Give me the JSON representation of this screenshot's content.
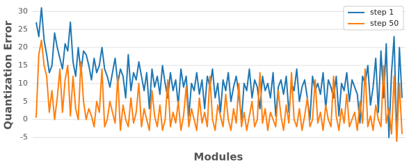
{
  "chart_data": {
    "type": "line",
    "xlabel": "Modules",
    "ylabel": "Quantization Error",
    "ylim": [
      -7,
      32
    ],
    "yticks": [
      -5,
      0,
      5,
      10,
      15,
      20,
      25,
      30
    ],
    "grid": true,
    "legend": "upper right",
    "series": [
      {
        "name": "step 1",
        "color": "#1f77b4",
        "values": [
          27,
          23,
          31,
          22,
          18,
          13,
          15,
          24,
          20,
          17,
          14,
          21,
          19,
          27,
          16,
          12,
          20,
          13,
          19,
          18,
          15,
          11,
          17,
          13,
          15,
          20,
          14,
          12,
          9,
          13,
          17,
          10,
          14,
          12,
          6,
          18,
          8,
          13,
          11,
          16,
          12,
          8,
          13,
          3,
          14,
          9,
          12,
          7,
          15,
          10,
          6,
          13,
          8,
          11,
          4,
          14,
          9,
          12,
          1,
          10,
          8,
          13,
          7,
          11,
          3,
          12,
          9,
          14,
          6,
          10,
          2,
          11,
          8,
          13,
          5,
          9,
          12,
          7,
          0,
          10,
          8,
          14,
          6,
          11,
          9,
          3,
          12,
          8,
          10,
          6,
          13,
          1,
          9,
          11,
          7,
          12,
          2,
          10,
          8,
          14,
          5,
          9,
          11,
          6,
          0,
          12,
          8,
          10,
          7,
          13,
          3,
          11,
          9,
          6,
          12,
          1,
          10,
          8,
          13,
          5,
          11,
          9,
          7,
          -1,
          12,
          10,
          15,
          4,
          9,
          17,
          2,
          19,
          6,
          21,
          -5,
          13,
          23,
          -6,
          20,
          6
        ]
      },
      {
        "name": "step 50",
        "color": "#ff7f0e",
        "values": [
          0.5,
          18,
          22,
          15,
          12,
          2,
          8,
          0,
          6,
          14,
          2,
          11,
          15,
          1,
          12,
          3,
          0,
          16,
          5,
          0,
          3,
          1,
          -2,
          5,
          2,
          14,
          -2,
          0,
          5,
          2,
          -1,
          12,
          -3,
          4,
          0,
          -2,
          6,
          -1,
          2,
          10,
          -2,
          3,
          0,
          -3,
          8,
          1,
          -2,
          4,
          -3,
          0,
          11,
          -2,
          2,
          -1,
          5,
          -3,
          1,
          9,
          -2,
          3,
          0,
          -3,
          6,
          -1,
          2,
          -2,
          12,
          0,
          -3,
          4,
          1,
          -2,
          7,
          0,
          -3,
          3,
          -1,
          10,
          -2,
          2,
          -3,
          1,
          5,
          -2,
          0,
          13,
          -1,
          3,
          -3,
          2,
          0,
          -2,
          8,
          1,
          -3,
          4,
          -1,
          13,
          0,
          -2,
          3,
          -3,
          1,
          6,
          -2,
          0,
          11,
          -1,
          2,
          -3,
          4,
          0,
          -2,
          12,
          1,
          -3,
          3,
          -1,
          7,
          -2,
          0,
          2,
          -3,
          5,
          -1,
          14,
          -2,
          1,
          -3,
          4,
          0,
          -2,
          15,
          -1,
          3,
          -4,
          12,
          -6,
          10,
          -4
        ]
      }
    ]
  }
}
